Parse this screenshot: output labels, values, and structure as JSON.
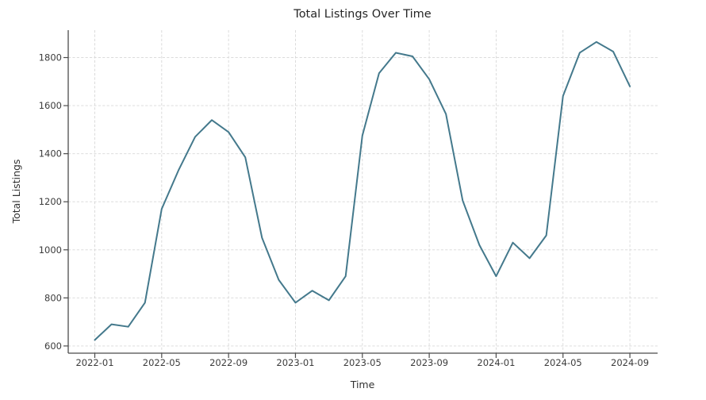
{
  "chart_data": {
    "type": "line",
    "title": "Total Listings Over Time",
    "xlabel": "Time",
    "ylabel": "Total Listings",
    "x": [
      "2022-01",
      "2022-02",
      "2022-03",
      "2022-04",
      "2022-05",
      "2022-06",
      "2022-07",
      "2022-08",
      "2022-09",
      "2022-10",
      "2022-11",
      "2022-12",
      "2023-01",
      "2023-02",
      "2023-03",
      "2023-04",
      "2023-05",
      "2023-06",
      "2023-07",
      "2023-08",
      "2023-09",
      "2023-10",
      "2023-11",
      "2023-12",
      "2024-01",
      "2024-02",
      "2024-03",
      "2024-04",
      "2024-05",
      "2024-06",
      "2024-07",
      "2024-08",
      "2024-09"
    ],
    "values": [
      625,
      690,
      680,
      780,
      1170,
      1330,
      1470,
      1540,
      1490,
      1385,
      1050,
      875,
      780,
      830,
      790,
      890,
      1475,
      1735,
      1820,
      1805,
      1710,
      1565,
      1205,
      1020,
      890,
      1030,
      965,
      1060,
      1640,
      1820,
      1865,
      1825,
      1680
    ],
    "series": [
      {
        "name": "Total Listings",
        "color": "#44798c"
      }
    ],
    "yticks": [
      600,
      800,
      1000,
      1200,
      1400,
      1600,
      1800
    ],
    "xtick_labels": [
      "2022-01",
      "2022-05",
      "2022-09",
      "2023-01",
      "2023-05",
      "2023-09",
      "2024-01",
      "2024-05",
      "2024-09"
    ],
    "xtick_every": 4,
    "ylim": [
      570,
      1914
    ],
    "grid": "both-dashed",
    "legend_position": "none",
    "colors": {
      "line": "#44798c",
      "grid": "#d8d8d8",
      "spine": "#4b4b4b",
      "tick_label": "#3c3c3c",
      "title": "#262626",
      "background": "#ffffff"
    }
  }
}
